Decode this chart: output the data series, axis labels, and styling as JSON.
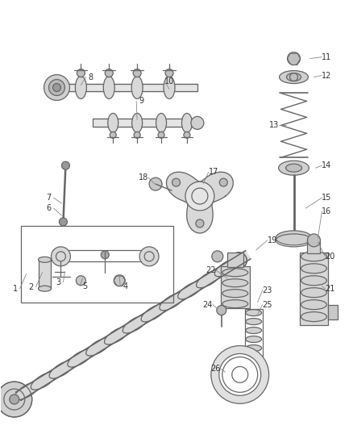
{
  "bg_color": "#ffffff",
  "line_color": "#666666",
  "label_color": "#333333",
  "fig_width": 4.38,
  "fig_height": 5.33,
  "dpi": 100,
  "gray_fill": "#d4d4d4",
  "gray_light": "#e8e8e8",
  "gray_dark": "#aaaaaa"
}
